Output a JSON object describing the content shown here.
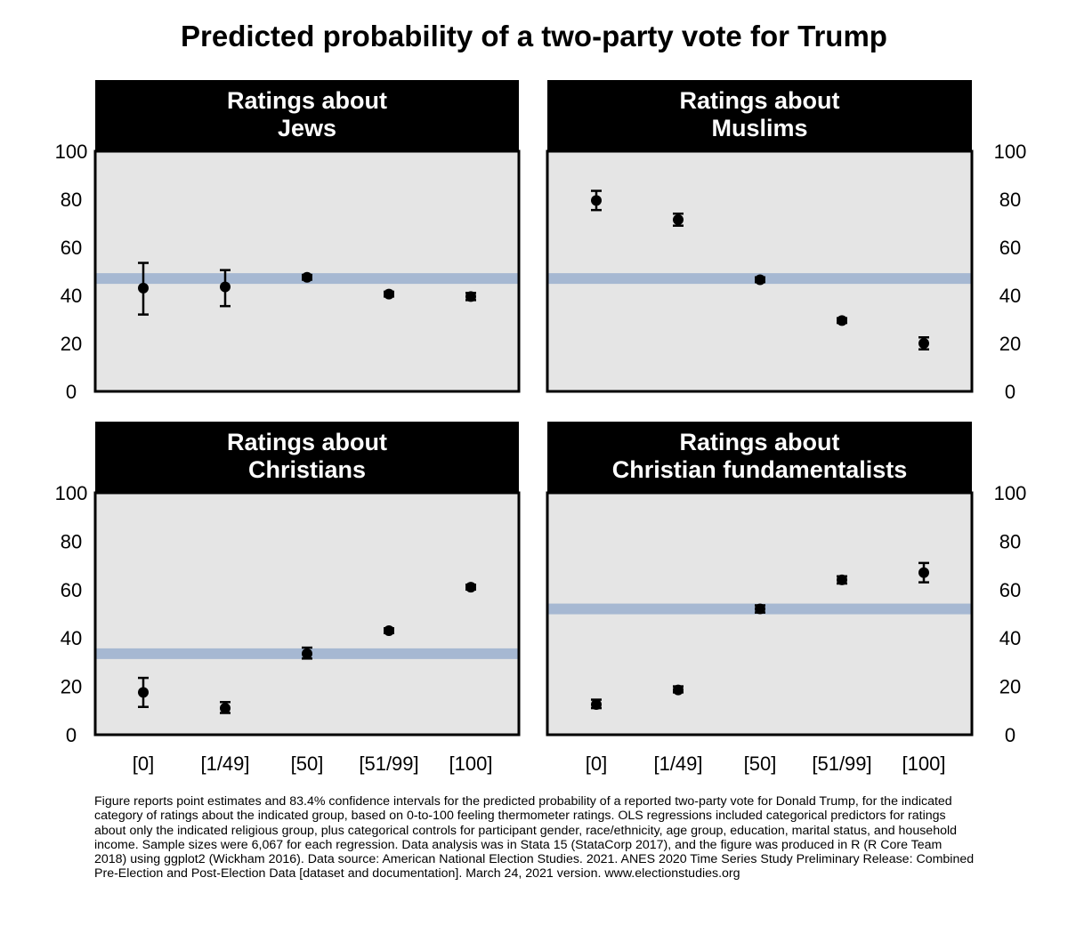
{
  "title": "Predicted probability of a two-party vote for Trump",
  "caption": "Figure reports point estimates and 83.4% confidence intervals for the predicted probability of a reported two-party vote for Donald Trump, for the indicated category of ratings about the indicated group, based on 0-to-100 feeling thermometer ratings. OLS regressions included categorical predictors for ratings about only the indicated religious group, plus categorical controls for participant gender, race/ethnicity, age group, education, marital status, and household income. Sample sizes were 6,067 for each regression. Data analysis was in Stata 15 (StataCorp 2017), and the figure was produced in R (R Core Team 2018) using ggplot2 (Wickham 2016). Data source: American National Election Studies. 2021. ANES 2020 Time Series Study Preliminary Release: Combined Pre-Election and Post-Election Data [dataset and documentation]. March 24, 2021 version. www.electionstudies.org",
  "colors": {
    "panel_bg": "#e5e5e5",
    "reference_band": "#a6b8d2",
    "header_bg": "#000000",
    "points": "#000000"
  },
  "chart_data": [
    {
      "type": "scatter",
      "title_lines": [
        "Ratings about",
        "Jews"
      ],
      "categories": [
        "[0]",
        "[1/49]",
        "[50]",
        "[51/99]",
        "[100]"
      ],
      "values": [
        43,
        43.5,
        47.5,
        40.5,
        39.5
      ],
      "ci_low": [
        32,
        35.5,
        46.5,
        39.5,
        38
      ],
      "ci_high": [
        53.5,
        50.5,
        48.5,
        41.5,
        41
      ],
      "reference_line": 47,
      "ylim": [
        0,
        100
      ],
      "yticks": [
        0,
        20,
        40,
        60,
        80,
        100
      ],
      "y_axis_side": "left",
      "xlabel": "",
      "ylabel": ""
    },
    {
      "type": "scatter",
      "title_lines": [
        "Ratings about",
        "Muslims"
      ],
      "categories": [
        "[0]",
        "[1/49]",
        "[50]",
        "[51/99]",
        "[100]"
      ],
      "values": [
        79.5,
        71.5,
        46.5,
        29.5,
        20
      ],
      "ci_low": [
        75.5,
        69,
        45.5,
        28.5,
        17.5
      ],
      "ci_high": [
        83.5,
        74,
        47.5,
        30.5,
        22.5
      ],
      "reference_line": 47,
      "ylim": [
        0,
        100
      ],
      "yticks": [
        0,
        20,
        40,
        60,
        80,
        100
      ],
      "y_axis_side": "right",
      "xlabel": "",
      "ylabel": ""
    },
    {
      "type": "scatter",
      "title_lines": [
        "Ratings about",
        "Christians"
      ],
      "categories": [
        "[0]",
        "[1/49]",
        "[50]",
        "[51/99]",
        "[100]"
      ],
      "values": [
        17.5,
        11,
        33.5,
        43,
        61
      ],
      "ci_low": [
        11.5,
        9,
        31.5,
        42,
        60
      ],
      "ci_high": [
        23.5,
        13.5,
        36,
        44,
        62
      ],
      "reference_line": 33.5,
      "ylim": [
        0,
        100
      ],
      "yticks": [
        0,
        20,
        40,
        60,
        80,
        100
      ],
      "y_axis_side": "left",
      "x_tick_labels_visible": true,
      "xlabel": "",
      "ylabel": ""
    },
    {
      "type": "scatter",
      "title_lines": [
        "Ratings about",
        "Christian fundamentalists"
      ],
      "categories": [
        "[0]",
        "[1/49]",
        "[50]",
        "[51/99]",
        "[100]"
      ],
      "values": [
        12.5,
        18.5,
        52,
        64,
        67
      ],
      "ci_low": [
        11,
        17.5,
        50.5,
        62.5,
        63
      ],
      "ci_high": [
        14.5,
        20,
        53.5,
        65.5,
        71
      ],
      "reference_line": 52,
      "ylim": [
        0,
        100
      ],
      "yticks": [
        0,
        20,
        40,
        60,
        80,
        100
      ],
      "y_axis_side": "right",
      "x_tick_labels_visible": true,
      "xlabel": "",
      "ylabel": ""
    }
  ]
}
